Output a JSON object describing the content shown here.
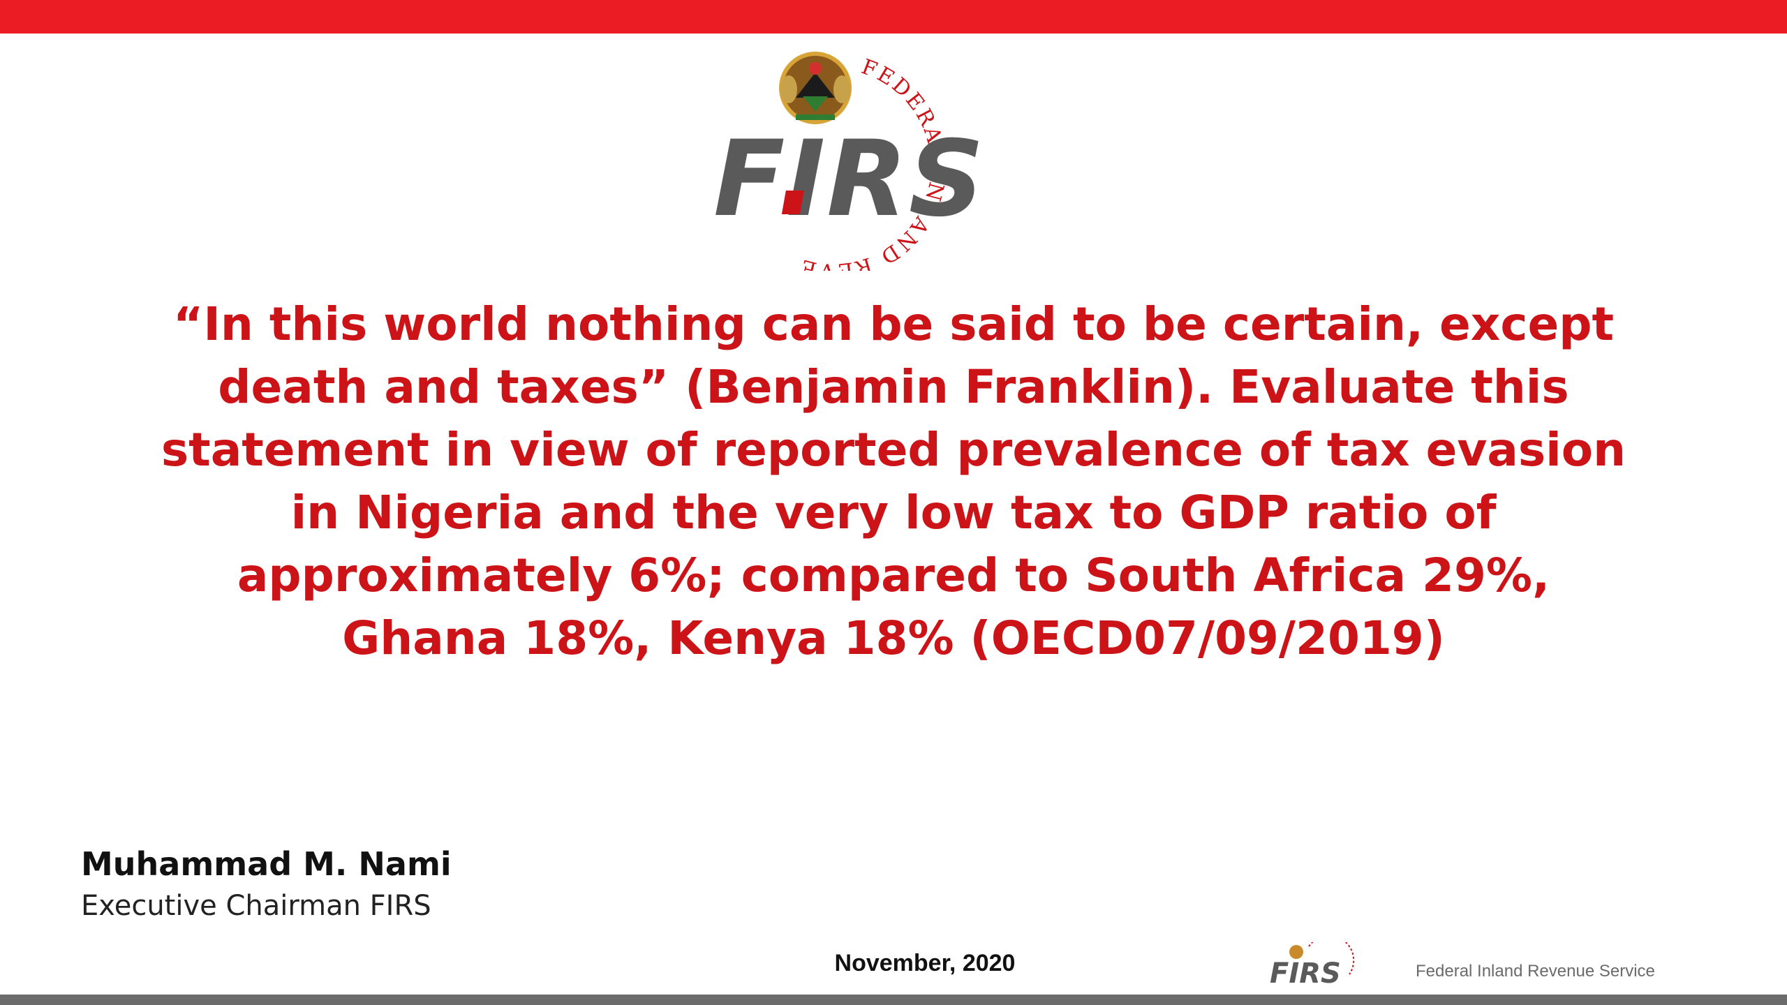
{
  "logo": {
    "brand_text": "FIRS",
    "ring_text": "FEDERAL INLAND REVENUE SERVICE",
    "emblem": "nigeria-coat-of-arms"
  },
  "quote": {
    "lines": [
      "“In this world nothing can be said to be certain, except",
      "death and taxes” (Benjamin Franklin). Evaluate this",
      "statement in view of reported prevalence of tax evasion",
      "in Nigeria and the very low tax to GDP ratio of",
      "approximately 6%; compared to South Africa 29%,",
      "Ghana 18%, Kenya 18% (OECD07/09/2019)"
    ]
  },
  "author": {
    "name": "Muhammad M. Nami",
    "title": "Executive Chairman FIRS"
  },
  "footer": {
    "date": "November, 2020",
    "organization": "Federal Inland Revenue Service"
  },
  "colors": {
    "brand_red": "#ec1c24",
    "quote_red": "#cc1418",
    "logo_gray": "#5a5a5a",
    "bottom_bar": "#6b6b6b"
  }
}
